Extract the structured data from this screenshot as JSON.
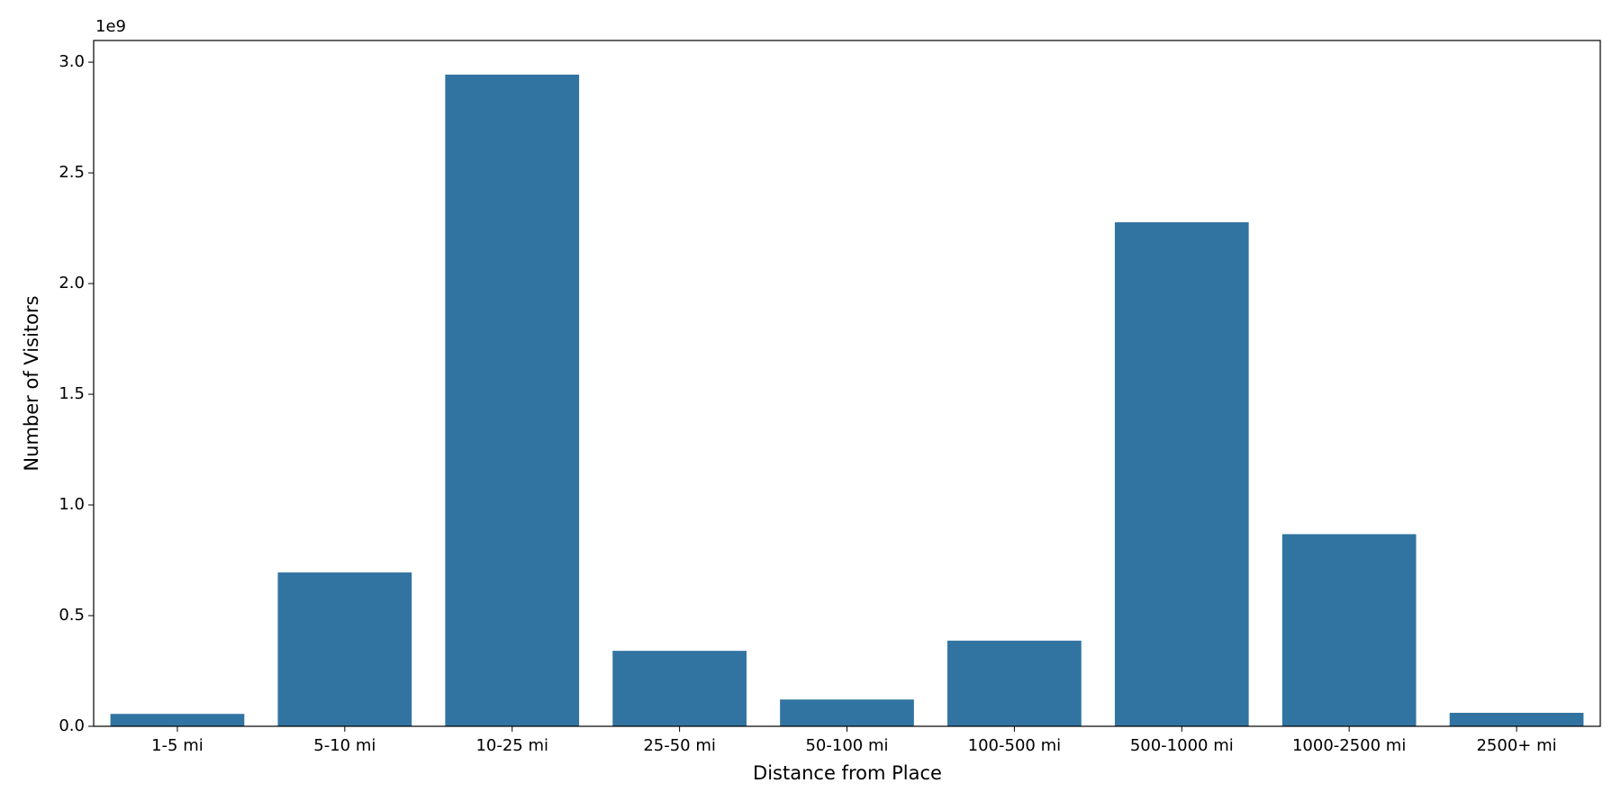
{
  "chart_data": {
    "type": "bar",
    "x_label": "Distance from Place",
    "y_label": "Number of Visitors",
    "y_offset_label": "1e9",
    "categories": [
      "1-5 mi",
      "5-10 mi",
      "10-25 mi",
      "25-50 mi",
      "50-100 mi",
      "100-500 mi",
      "500-1000 mi",
      "1000-2500 mi",
      "2500+ mi"
    ],
    "values": [
      56000000,
      695000000,
      2944000000,
      341000000,
      121000000,
      387000000,
      2277000000,
      868000000,
      61000000
    ],
    "color": "#3274a1",
    "ylim": [
      0,
      3098000000
    ],
    "yticks": [
      {
        "value": 0,
        "label": "0.0"
      },
      {
        "value": 500000000,
        "label": "0.5"
      },
      {
        "value": 1000000000,
        "label": "1.0"
      },
      {
        "value": 1500000000,
        "label": "1.5"
      },
      {
        "value": 2000000000,
        "label": "2.0"
      },
      {
        "value": 2500000000,
        "label": "2.5"
      },
      {
        "value": 3000000000,
        "label": "3.0"
      }
    ],
    "grid": false
  }
}
